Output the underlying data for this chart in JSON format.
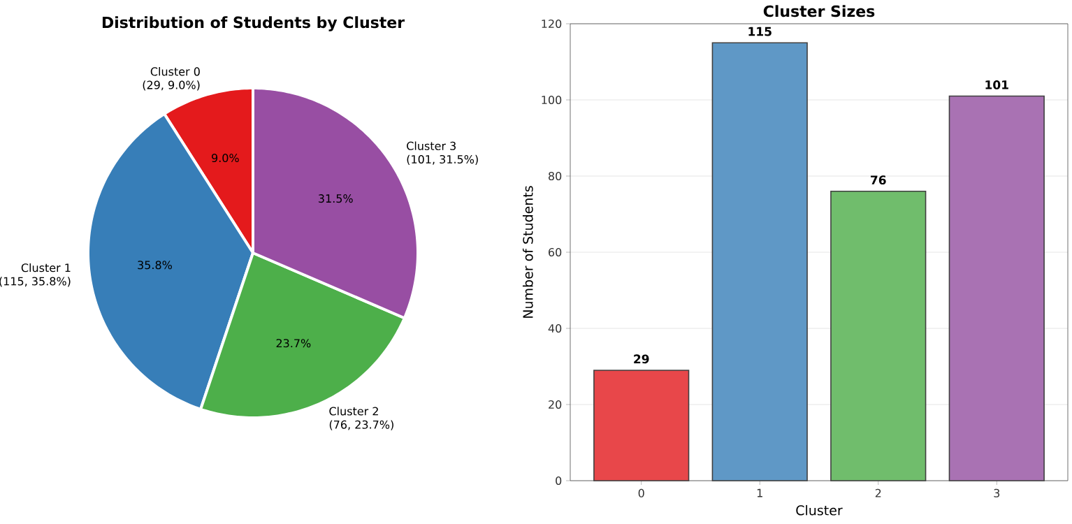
{
  "chart_data": [
    {
      "type": "pie",
      "title": "Distribution of Students by Cluster",
      "categories": [
        "Cluster 0",
        "Cluster 1",
        "Cluster 2",
        "Cluster 3"
      ],
      "values": [
        29,
        115,
        76,
        101
      ],
      "colors": [
        "#e41a1c",
        "#377eb8",
        "#4daf4a",
        "#984ea3"
      ],
      "value_labels": [
        "(29, 9.0%)",
        "(115, 35.8%)",
        "(76, 23.7%)",
        "(101, 31.5%)"
      ],
      "annotations": [
        "9.0%",
        "35.8%",
        "23.7%",
        "31.5%"
      ]
    },
    {
      "type": "bar",
      "title": "Cluster Sizes",
      "xlabel": "Cluster",
      "ylabel": "Number of Students",
      "categories": [
        "0",
        "1",
        "2",
        "3"
      ],
      "values": [
        29,
        115,
        76,
        101
      ],
      "colors": [
        "#e8474a",
        "#5f98c6",
        "#70bd6c",
        "#a972b3"
      ],
      "ylim": [
        0,
        120
      ],
      "yticks": [
        0,
        20,
        40,
        60,
        80,
        100,
        120
      ],
      "grid": "y",
      "data_labels": true
    }
  ]
}
